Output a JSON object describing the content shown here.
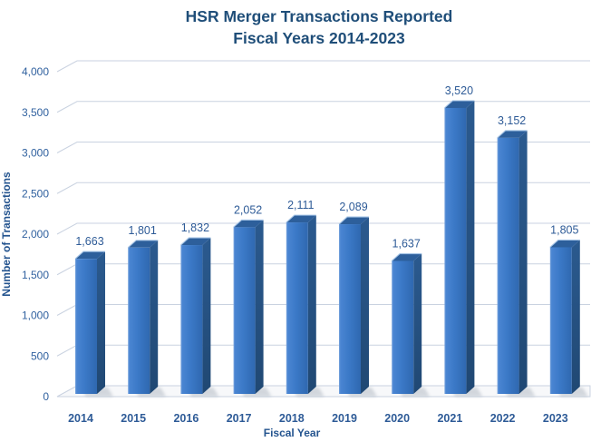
{
  "title": {
    "line1": "HSR Merger Transactions Reported",
    "line2": "Fiscal Years 2014-2023"
  },
  "chart_data": {
    "type": "bar",
    "style": "3d-column",
    "title": "HSR Merger Transactions Reported Fiscal Years 2014-2023",
    "title_lines": [
      "HSR Merger Transactions Reported",
      "Fiscal Years 2014-2023"
    ],
    "categories": [
      "2014",
      "2015",
      "2016",
      "2017",
      "2018",
      "2019",
      "2020",
      "2021",
      "2022",
      "2023"
    ],
    "values": [
      1663,
      1801,
      1832,
      2052,
      2111,
      2089,
      1637,
      3520,
      3152,
      1805
    ],
    "xlabel": "Fiscal Year",
    "ylabel": "Number of Transactions",
    "ylim": [
      0,
      4000
    ],
    "ytick_step": 500,
    "ytick_labels": [
      "0",
      "500",
      "1,000",
      "1,500",
      "2,000",
      "2,500",
      "3,000",
      "3,500",
      "4,000"
    ],
    "data_labels": [
      "1,663",
      "1,801",
      "1,832",
      "2,052",
      "2,111",
      "2,089",
      "1,637",
      "3,520",
      "3,152",
      "1,805"
    ],
    "grid": true,
    "legend": "none",
    "colors": {
      "bar_front": "#3B79C7",
      "bar_front_light": "#7BA6DE",
      "bar_front_dark": "#2F68B0",
      "bar_side": "#254F7E",
      "bar_top": "#2D5F9B",
      "bar_top_highlight": "#A9C6E8",
      "gridline": "#C9D2E0",
      "floor_fill": "#F7F8FA",
      "shadow": "#AEB6C0",
      "title_text": "#1F4E79",
      "label_text": "#2E5B97",
      "tick_text": "#30619F",
      "background": "#FFFFFF"
    }
  }
}
